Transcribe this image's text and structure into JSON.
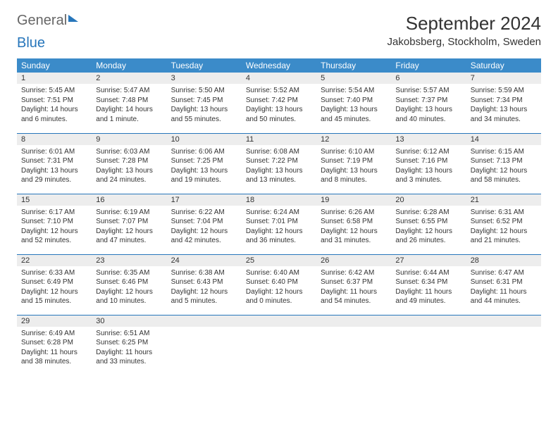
{
  "logo": {
    "part1": "General",
    "part2": "Blue"
  },
  "title": "September 2024",
  "location": "Jakobsberg, Stockholm, Sweden",
  "colors": {
    "header_bg": "#3b8bc9",
    "border": "#2776bb",
    "daynum_bg": "#ededed",
    "text": "#333333",
    "page_bg": "#ffffff"
  },
  "day_headers": [
    "Sunday",
    "Monday",
    "Tuesday",
    "Wednesday",
    "Thursday",
    "Friday",
    "Saturday"
  ],
  "weeks": [
    [
      {
        "n": "1",
        "sr": "5:45 AM",
        "ss": "7:51 PM",
        "dl": "14 hours and 6 minutes."
      },
      {
        "n": "2",
        "sr": "5:47 AM",
        "ss": "7:48 PM",
        "dl": "14 hours and 1 minute."
      },
      {
        "n": "3",
        "sr": "5:50 AM",
        "ss": "7:45 PM",
        "dl": "13 hours and 55 minutes."
      },
      {
        "n": "4",
        "sr": "5:52 AM",
        "ss": "7:42 PM",
        "dl": "13 hours and 50 minutes."
      },
      {
        "n": "5",
        "sr": "5:54 AM",
        "ss": "7:40 PM",
        "dl": "13 hours and 45 minutes."
      },
      {
        "n": "6",
        "sr": "5:57 AM",
        "ss": "7:37 PM",
        "dl": "13 hours and 40 minutes."
      },
      {
        "n": "7",
        "sr": "5:59 AM",
        "ss": "7:34 PM",
        "dl": "13 hours and 34 minutes."
      }
    ],
    [
      {
        "n": "8",
        "sr": "6:01 AM",
        "ss": "7:31 PM",
        "dl": "13 hours and 29 minutes."
      },
      {
        "n": "9",
        "sr": "6:03 AM",
        "ss": "7:28 PM",
        "dl": "13 hours and 24 minutes."
      },
      {
        "n": "10",
        "sr": "6:06 AM",
        "ss": "7:25 PM",
        "dl": "13 hours and 19 minutes."
      },
      {
        "n": "11",
        "sr": "6:08 AM",
        "ss": "7:22 PM",
        "dl": "13 hours and 13 minutes."
      },
      {
        "n": "12",
        "sr": "6:10 AM",
        "ss": "7:19 PM",
        "dl": "13 hours and 8 minutes."
      },
      {
        "n": "13",
        "sr": "6:12 AM",
        "ss": "7:16 PM",
        "dl": "13 hours and 3 minutes."
      },
      {
        "n": "14",
        "sr": "6:15 AM",
        "ss": "7:13 PM",
        "dl": "12 hours and 58 minutes."
      }
    ],
    [
      {
        "n": "15",
        "sr": "6:17 AM",
        "ss": "7:10 PM",
        "dl": "12 hours and 52 minutes."
      },
      {
        "n": "16",
        "sr": "6:19 AM",
        "ss": "7:07 PM",
        "dl": "12 hours and 47 minutes."
      },
      {
        "n": "17",
        "sr": "6:22 AM",
        "ss": "7:04 PM",
        "dl": "12 hours and 42 minutes."
      },
      {
        "n": "18",
        "sr": "6:24 AM",
        "ss": "7:01 PM",
        "dl": "12 hours and 36 minutes."
      },
      {
        "n": "19",
        "sr": "6:26 AM",
        "ss": "6:58 PM",
        "dl": "12 hours and 31 minutes."
      },
      {
        "n": "20",
        "sr": "6:28 AM",
        "ss": "6:55 PM",
        "dl": "12 hours and 26 minutes."
      },
      {
        "n": "21",
        "sr": "6:31 AM",
        "ss": "6:52 PM",
        "dl": "12 hours and 21 minutes."
      }
    ],
    [
      {
        "n": "22",
        "sr": "6:33 AM",
        "ss": "6:49 PM",
        "dl": "12 hours and 15 minutes."
      },
      {
        "n": "23",
        "sr": "6:35 AM",
        "ss": "6:46 PM",
        "dl": "12 hours and 10 minutes."
      },
      {
        "n": "24",
        "sr": "6:38 AM",
        "ss": "6:43 PM",
        "dl": "12 hours and 5 minutes."
      },
      {
        "n": "25",
        "sr": "6:40 AM",
        "ss": "6:40 PM",
        "dl": "12 hours and 0 minutes."
      },
      {
        "n": "26",
        "sr": "6:42 AM",
        "ss": "6:37 PM",
        "dl": "11 hours and 54 minutes."
      },
      {
        "n": "27",
        "sr": "6:44 AM",
        "ss": "6:34 PM",
        "dl": "11 hours and 49 minutes."
      },
      {
        "n": "28",
        "sr": "6:47 AM",
        "ss": "6:31 PM",
        "dl": "11 hours and 44 minutes."
      }
    ],
    [
      {
        "n": "29",
        "sr": "6:49 AM",
        "ss": "6:28 PM",
        "dl": "11 hours and 38 minutes."
      },
      {
        "n": "30",
        "sr": "6:51 AM",
        "ss": "6:25 PM",
        "dl": "11 hours and 33 minutes."
      },
      null,
      null,
      null,
      null,
      null
    ]
  ],
  "labels": {
    "sunrise": "Sunrise: ",
    "sunset": "Sunset: ",
    "daylight": "Daylight: "
  }
}
